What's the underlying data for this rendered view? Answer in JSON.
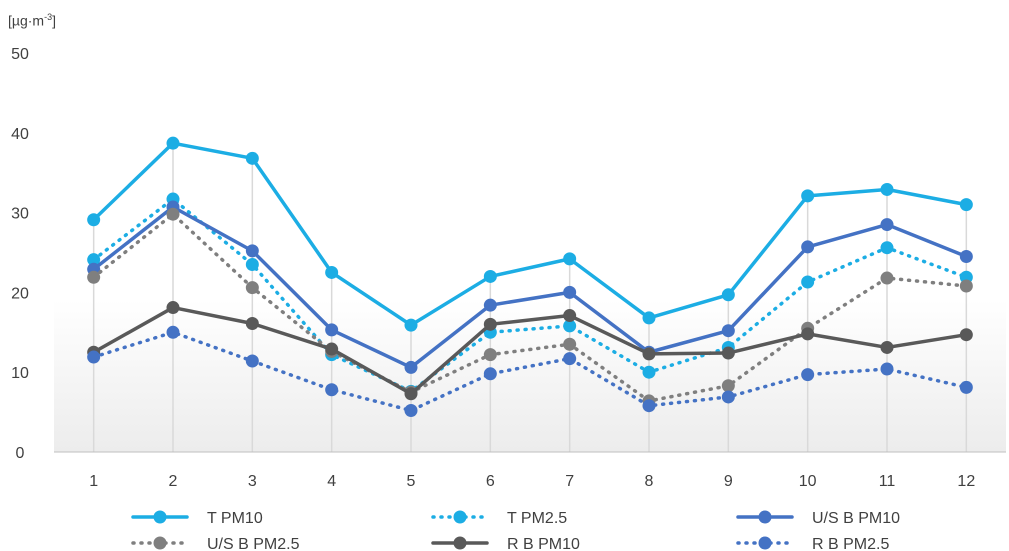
{
  "chart_data": {
    "type": "line",
    "ylabel": "[µg·m-3]",
    "ylabel_parts": {
      "base": "[µg·m",
      "exp": "-3",
      "close": "]"
    },
    "ylim": [
      0,
      50
    ],
    "yticks": [
      "0",
      "10",
      "20",
      "30",
      "40",
      "50"
    ],
    "categories": [
      "1",
      "2",
      "3",
      "4",
      "5",
      "6",
      "7",
      "8",
      "9",
      "10",
      "11",
      "12"
    ],
    "grid": "vertical-drop-lines",
    "legend_position": "bottom",
    "series": [
      {
        "name": "T PM10",
        "color": "#1CADE4",
        "dash": "solid",
        "values": [
          29.1,
          38.7,
          36.8,
          22.5,
          15.9,
          22.0,
          24.2,
          16.8,
          19.7,
          32.1,
          32.9,
          31.0
        ]
      },
      {
        "name": "T PM2.5",
        "color": "#1CADE4",
        "dash": "dotted",
        "values": [
          24.1,
          31.7,
          23.5,
          12.2,
          7.6,
          15.0,
          15.8,
          10.0,
          13.1,
          21.3,
          25.6,
          21.9
        ]
      },
      {
        "name": "U/S B PM10",
        "color": "#4472C4",
        "dash": "solid",
        "values": [
          22.9,
          30.7,
          25.2,
          15.3,
          10.6,
          18.4,
          20.0,
          12.5,
          15.2,
          25.7,
          28.5,
          24.5
        ]
      },
      {
        "name": "U/S B PM2.5",
        "color": "#7F7F7F",
        "dash": "dotted",
        "values": [
          21.9,
          29.8,
          20.6,
          12.6,
          7.5,
          12.2,
          13.5,
          6.4,
          8.3,
          15.5,
          21.8,
          20.8
        ]
      },
      {
        "name": "R B PM10",
        "color": "#595959",
        "dash": "solid",
        "values": [
          12.5,
          18.1,
          16.1,
          12.9,
          7.3,
          16.0,
          17.1,
          12.3,
          12.4,
          14.8,
          13.1,
          14.7
        ]
      },
      {
        "name": "R B PM2.5",
        "color": "#4472C4",
        "dash": "dotted",
        "values": [
          11.9,
          15.0,
          11.4,
          7.8,
          5.2,
          9.8,
          11.7,
          5.8,
          6.9,
          9.7,
          10.4,
          8.1
        ]
      }
    ]
  }
}
